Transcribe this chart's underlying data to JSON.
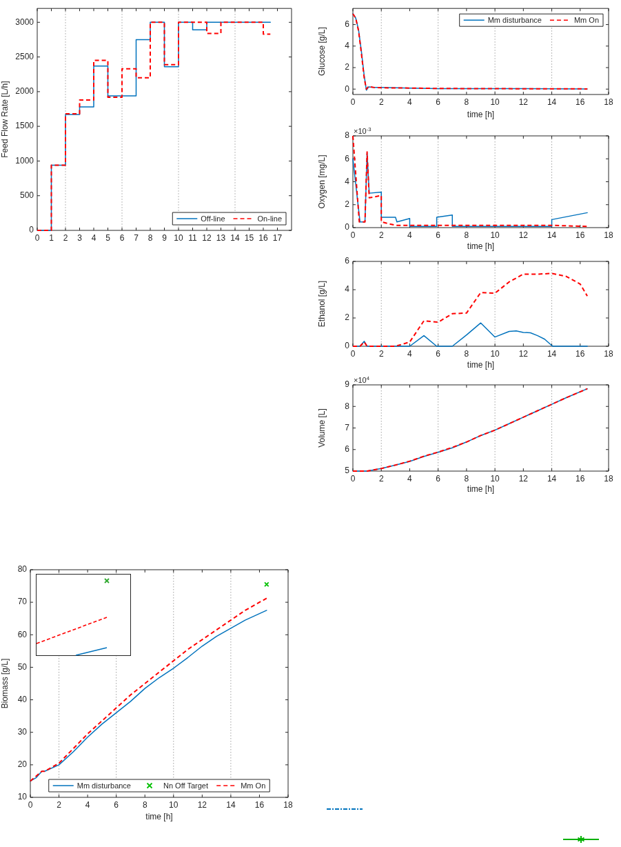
{
  "chart_data": [
    {
      "type": "step",
      "ylabel": "Feed Flow Rate [L/h]",
      "x": [
        0,
        1,
        2,
        3,
        4,
        5,
        6,
        7,
        8,
        9,
        10,
        11,
        12,
        13,
        14,
        15,
        16,
        16.5
      ],
      "series": [
        {
          "name": "Off-line",
          "color": "#0072bd",
          "line_style": "solid",
          "values": [
            0,
            940,
            1670,
            1780,
            2370,
            1940,
            1940,
            2750,
            3000,
            2360,
            3000,
            2890,
            3000,
            3000,
            3000,
            3000,
            3000,
            3000
          ]
        },
        {
          "name": "On-line",
          "color": "#ff0000",
          "line_style": "dashed",
          "values": [
            0,
            940,
            1680,
            1880,
            2450,
            1920,
            2330,
            2200,
            3000,
            2390,
            3000,
            3000,
            2840,
            3000,
            3000,
            3000,
            2830,
            2830
          ]
        }
      ],
      "xlim": [
        0,
        18
      ],
      "xticks": [
        0,
        1,
        2,
        3,
        4,
        5,
        6,
        7,
        8,
        9,
        10,
        11,
        12,
        13,
        14,
        15,
        16,
        17
      ],
      "ylim": [
        0,
        3200
      ],
      "yticks": [
        0,
        500,
        1000,
        1500,
        2000,
        2500,
        3000
      ],
      "legend": "bottom right",
      "ref_lines": [
        {
          "axis": "x",
          "value": 2,
          "color": "#a0a0a0",
          "line_style": "dotted"
        },
        {
          "axis": "x",
          "value": 6,
          "color": "#a0a0a0",
          "line_style": "dotted"
        },
        {
          "axis": "x",
          "value": 10,
          "color": "#a0a0a0",
          "line_style": "dotted"
        },
        {
          "axis": "x",
          "value": 14,
          "color": "#a0a0a0",
          "line_style": "dotted"
        }
      ]
    },
    {
      "type": "line",
      "xlabel": "time [h]",
      "ylabel": "Glucose [g/L]",
      "x": [
        0,
        0.2,
        0.4,
        0.6,
        0.8,
        0.95,
        1.1,
        1.5,
        2,
        4,
        6,
        10,
        16.5
      ],
      "series": [
        {
          "name": "Mm disturbance",
          "color": "#0072bd",
          "line_style": "solid",
          "values": [
            7,
            6.6,
            5.5,
            3.5,
            1.2,
            -0.1,
            0.2,
            0.15,
            0.15,
            0.1,
            0.05,
            0.05,
            0.02
          ]
        },
        {
          "name": "Mm On",
          "color": "#ff0000",
          "line_style": "dashed",
          "values": [
            7,
            6.6,
            5.4,
            3.3,
            1.0,
            0.0,
            0.25,
            0.15,
            0.12,
            0.1,
            0.06,
            0.04,
            0.02
          ]
        }
      ],
      "xlim": [
        0,
        18
      ],
      "xticks": [
        0,
        2,
        4,
        6,
        8,
        10,
        12,
        14,
        16,
        18
      ],
      "ylim": [
        -0.5,
        7.5
      ],
      "yticks": [
        0,
        2,
        4,
        6
      ],
      "legend": "top right",
      "ref_lines": [
        {
          "axis": "x",
          "value": 2,
          "color": "#a0a0a0",
          "line_style": "dotted"
        },
        {
          "axis": "x",
          "value": 6,
          "color": "#a0a0a0",
          "line_style": "dotted"
        },
        {
          "axis": "x",
          "value": 10,
          "color": "#a0a0a0",
          "line_style": "dotted"
        },
        {
          "axis": "x",
          "value": 14,
          "color": "#a0a0a0",
          "line_style": "dotted"
        }
      ]
    },
    {
      "type": "line",
      "xlabel": "time [h]",
      "ylabel": "Oxygen [mg/L]",
      "annotations": [
        "×10$^{-3}$"
      ],
      "series": [
        {
          "color": "#0072bd",
          "line_style": "solid",
          "x": [
            0,
            0.5,
            0.85,
            1.0,
            1.15,
            2,
            2,
            3,
            3.1,
            4,
            4,
            5.9,
            5.9,
            7,
            7,
            14,
            14,
            16.5
          ],
          "values": [
            6,
            0.5,
            0.5,
            6.5,
            3,
            3.1,
            0.9,
            0.9,
            0.5,
            0.8,
            0.1,
            0.1,
            0.9,
            1.1,
            0.1,
            0.1,
            0.7,
            1.3
          ]
        },
        {
          "color": "#ff0000",
          "line_style": "dashed",
          "x": [
            0,
            0.45,
            0.85,
            1.0,
            1.15,
            2,
            2,
            3,
            4,
            10,
            14,
            16.5
          ],
          "values": [
            8,
            0.5,
            0.5,
            6.6,
            2.6,
            2.8,
            0.5,
            0.2,
            0.2,
            0.2,
            0.2,
            0.1
          ]
        }
      ],
      "xlim": [
        0,
        18
      ],
      "xticks": [
        0,
        2,
        4,
        6,
        8,
        10,
        12,
        14,
        16,
        18
      ],
      "ylim": [
        0,
        8
      ],
      "yticks": [
        0,
        2,
        4,
        6,
        8
      ],
      "ref_lines": [
        {
          "axis": "x",
          "value": 2,
          "color": "#a0a0a0",
          "line_style": "dotted"
        },
        {
          "axis": "x",
          "value": 6,
          "color": "#a0a0a0",
          "line_style": "dotted"
        },
        {
          "axis": "x",
          "value": 10,
          "color": "#a0a0a0",
          "line_style": "dotted"
        },
        {
          "axis": "x",
          "value": 14,
          "color": "#a0a0a0",
          "line_style": "dotted"
        }
      ]
    },
    {
      "type": "line",
      "xlabel": "time [h]",
      "ylabel": "Ethanol [g/L]",
      "series": [
        {
          "color": "#0072bd",
          "line_style": "solid",
          "x": [
            0,
            0.5,
            0.8,
            1,
            4,
            5,
            5.9,
            7,
            8,
            9,
            10,
            11,
            11.5,
            12,
            12.5,
            13,
            13.5,
            14,
            14.1,
            16.5
          ],
          "values": [
            0,
            0,
            0.35,
            0,
            0,
            0.75,
            0,
            0,
            0.8,
            1.65,
            0.65,
            1.05,
            1.08,
            0.98,
            0.95,
            0.75,
            0.5,
            0.05,
            0,
            0
          ]
        },
        {
          "color": "#ff0000",
          "line_style": "dashed",
          "x": [
            0,
            0.5,
            0.8,
            1,
            3,
            4,
            5,
            6,
            7,
            8,
            9,
            10,
            11,
            12,
            13,
            14,
            15,
            16,
            16.5
          ],
          "values": [
            0,
            0,
            0.3,
            0,
            0,
            0.3,
            1.8,
            1.7,
            2.3,
            2.35,
            3.8,
            3.75,
            4.55,
            5.1,
            5.1,
            5.15,
            4.95,
            4.4,
            3.55
          ]
        }
      ],
      "xlim": [
        0,
        18
      ],
      "xticks": [
        0,
        2,
        4,
        6,
        8,
        10,
        12,
        14,
        16,
        18
      ],
      "ylim": [
        0,
        6
      ],
      "yticks": [
        0,
        2,
        4,
        6
      ],
      "ref_lines": [
        {
          "axis": "x",
          "value": 2,
          "color": "#a0a0a0",
          "line_style": "dotted"
        },
        {
          "axis": "x",
          "value": 6,
          "color": "#a0a0a0",
          "line_style": "dotted"
        },
        {
          "axis": "x",
          "value": 10,
          "color": "#a0a0a0",
          "line_style": "dotted"
        },
        {
          "axis": "x",
          "value": 14,
          "color": "#a0a0a0",
          "line_style": "dotted"
        }
      ]
    },
    {
      "type": "line",
      "xlabel": "time [h]",
      "ylabel": "Volume [L]",
      "annotations": [
        "×10$^{4}$"
      ],
      "x": [
        0,
        1,
        2,
        3,
        4,
        5,
        6,
        7,
        8,
        9,
        10,
        11,
        12,
        13,
        14,
        15,
        16.5
      ],
      "series": [
        {
          "color": "#0072bd",
          "line_style": "solid",
          "values": [
            5,
            5,
            5.12,
            5.28,
            5.45,
            5.68,
            5.87,
            6.08,
            6.35,
            6.65,
            6.9,
            7.2,
            7.5,
            7.8,
            8.1,
            8.4,
            8.82
          ]
        },
        {
          "color": "#ff0000",
          "line_style": "dashed",
          "values": [
            5,
            5,
            5.12,
            5.28,
            5.46,
            5.69,
            5.88,
            6.1,
            6.35,
            6.65,
            6.9,
            7.2,
            7.5,
            7.8,
            8.1,
            8.4,
            8.82
          ]
        }
      ],
      "xlim": [
        0,
        18
      ],
      "xticks": [
        0,
        2,
        4,
        6,
        8,
        10,
        12,
        14,
        16,
        18
      ],
      "ylim": [
        5,
        9
      ],
      "yticks": [
        5,
        6,
        7,
        8,
        9
      ],
      "ref_lines": [
        {
          "axis": "x",
          "value": 2,
          "color": "#a0a0a0",
          "line_style": "dotted"
        },
        {
          "axis": "x",
          "value": 6,
          "color": "#a0a0a0",
          "line_style": "dotted"
        },
        {
          "axis": "x",
          "value": 10,
          "color": "#a0a0a0",
          "line_style": "dotted"
        },
        {
          "axis": "x",
          "value": 14,
          "color": "#a0a0a0",
          "line_style": "dotted"
        }
      ]
    },
    {
      "type": "line",
      "xlabel": "time [h]",
      "ylabel": "Biomass [g/L]",
      "series": [
        {
          "name": "Mm disturbance",
          "color": "#0072bd",
          "line_style": "solid",
          "x": [
            0,
            0.4,
            0.8,
            1,
            2,
            3,
            4,
            5,
            6,
            7,
            8,
            9,
            10,
            11,
            12,
            13,
            14,
            15,
            16,
            16.5
          ],
          "values": [
            15,
            16,
            18,
            18,
            20,
            24,
            28.5,
            32.5,
            36,
            39.5,
            43.5,
            46.8,
            49.7,
            53,
            56.5,
            59.5,
            62,
            64.5,
            66.5,
            67.5
          ]
        },
        {
          "name": "Nn Off Target",
          "type": "scatter",
          "marker": "cross",
          "color": "#00c000",
          "x": [
            16.5
          ],
          "values": [
            75.5
          ]
        },
        {
          "name": "Mm On",
          "color": "#ff0000",
          "line_style": "dashed",
          "x": [
            0,
            0.8,
            1,
            2,
            3,
            4,
            5,
            6,
            7,
            8,
            9,
            10,
            11,
            12,
            13,
            14,
            15,
            16,
            16.5
          ],
          "values": [
            15,
            18,
            18,
            20.5,
            25,
            29.5,
            33.5,
            37.5,
            41.5,
            45,
            48.5,
            52,
            55.5,
            58.5,
            61.5,
            64.5,
            67.5,
            70,
            71.2
          ]
        }
      ],
      "xlim": [
        0,
        18
      ],
      "xticks": [
        0,
        2,
        4,
        6,
        8,
        10,
        12,
        14,
        16,
        18
      ],
      "ylim": [
        10,
        80
      ],
      "yticks": [
        10,
        20,
        30,
        40,
        50,
        60,
        70,
        80
      ],
      "legend": "bottom",
      "ref_lines": [
        {
          "axis": "x",
          "value": 2,
          "color": "#a0a0a0",
          "line_style": "dotted"
        },
        {
          "axis": "x",
          "value": 6,
          "color": "#a0a0a0",
          "line_style": "dotted"
        },
        {
          "axis": "x",
          "value": 10,
          "color": "#a0a0a0",
          "line_style": "dotted"
        },
        {
          "axis": "x",
          "value": 14,
          "color": "#a0a0a0",
          "line_style": "dotted"
        }
      ]
    }
  ]
}
